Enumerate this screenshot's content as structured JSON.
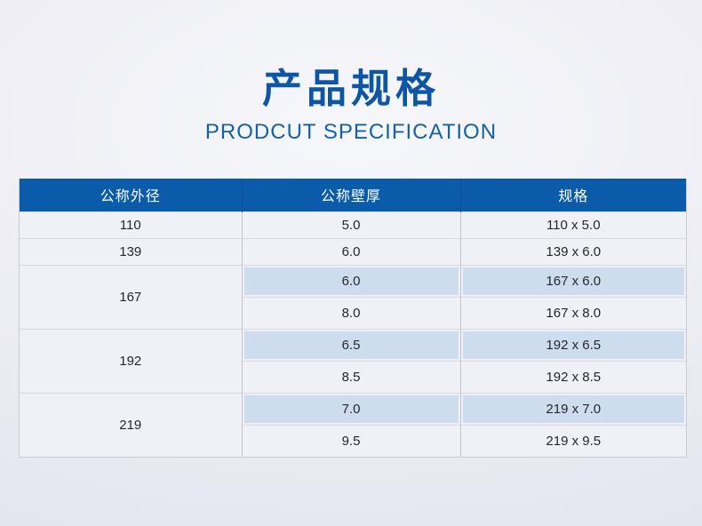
{
  "page": {
    "title": "产品规格",
    "subtitle": "PRODCUT SPECIFICATION"
  },
  "table": {
    "headers": [
      "公称外径",
      "公称壁厚",
      "规格"
    ],
    "groups": [
      {
        "diameter": "110",
        "rows": [
          {
            "thickness": "5.0",
            "spec": "110 x 5.0",
            "highlight": false
          }
        ]
      },
      {
        "diameter": "139",
        "rows": [
          {
            "thickness": "6.0",
            "spec": "139 x 6.0",
            "highlight": false
          }
        ]
      },
      {
        "diameter": "167",
        "rows": [
          {
            "thickness": "6.0",
            "spec": "167 x 6.0",
            "highlight": true
          },
          {
            "thickness": "8.0",
            "spec": "167 x 8.0",
            "highlight": false
          }
        ]
      },
      {
        "diameter": "192",
        "rows": [
          {
            "thickness": "6.5",
            "spec": "192 x 6.5",
            "highlight": true
          },
          {
            "thickness": "8.5",
            "spec": "192 x 8.5",
            "highlight": false
          }
        ]
      },
      {
        "diameter": "219",
        "rows": [
          {
            "thickness": "7.0",
            "spec": "219 x 7.0",
            "highlight": true
          },
          {
            "thickness": "9.5",
            "spec": "219 x 9.5",
            "highlight": false
          }
        ]
      }
    ]
  },
  "colors": {
    "title_blue": "#0d56a6",
    "subtitle_blue": "#1560ab",
    "header_bg": "#0a5caa",
    "header_divider": "#0d4f92",
    "row_bg": "#f0f1f7",
    "highlight_bg": "#cddded",
    "border_horizontal": "#d8d9e2",
    "border_vertical": "#c2c4d0",
    "page_bg": "#e8e8f0"
  }
}
